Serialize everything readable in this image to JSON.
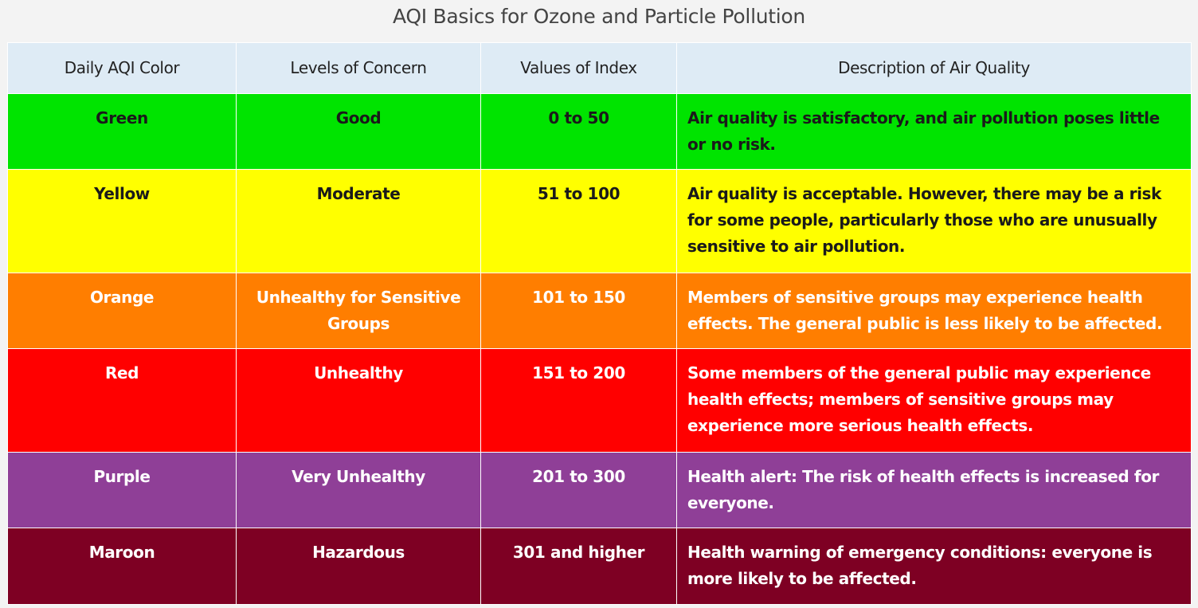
{
  "caption": "AQI Basics for Ozone and Particle Pollution",
  "headers": [
    "Daily AQI Color",
    "Levels of Concern",
    "Values of Index",
    "Description of Air Quality"
  ],
  "rows": [
    {
      "color": "Green",
      "level": "Good",
      "values": "0 to 50",
      "description": "Air quality is satisfactory, and air pollution poses little or no risk.",
      "bg": "#00e400",
      "fg": "#1a1a1a"
    },
    {
      "color": "Yellow",
      "level": "Moderate",
      "values": "51 to 100",
      "description": "Air quality is acceptable. However, there may be a risk for some people, particularly those who are unusually sensitive to air pollution.",
      "bg": "#ffff00",
      "fg": "#1a1a1a"
    },
    {
      "color": "Orange",
      "level": "Unhealthy for Sensitive Groups",
      "values": "101 to 150",
      "description": "Members of sensitive groups may experience health effects. The general public is less likely to be affected.",
      "bg": "#ff7e00",
      "fg": "#ffffff"
    },
    {
      "color": "Red",
      "level": "Unhealthy",
      "values": "151 to 200",
      "description": "Some members of the general public may experience health effects; members of sensitive groups may experience more serious health effects.",
      "bg": "#ff0000",
      "fg": "#ffffff"
    },
    {
      "color": "Purple",
      "level": "Very Unhealthy",
      "values": "201 to 300",
      "description": "Health alert: The risk of health effects is increased for everyone.",
      "bg": "#8f3f97",
      "fg": "#ffffff"
    },
    {
      "color": "Maroon",
      "level": "Hazardous",
      "values": "301 and higher",
      "description": "Health warning of emergency conditions: everyone is more likely to be affected.",
      "bg": "#7e0023",
      "fg": "#ffffff"
    }
  ]
}
